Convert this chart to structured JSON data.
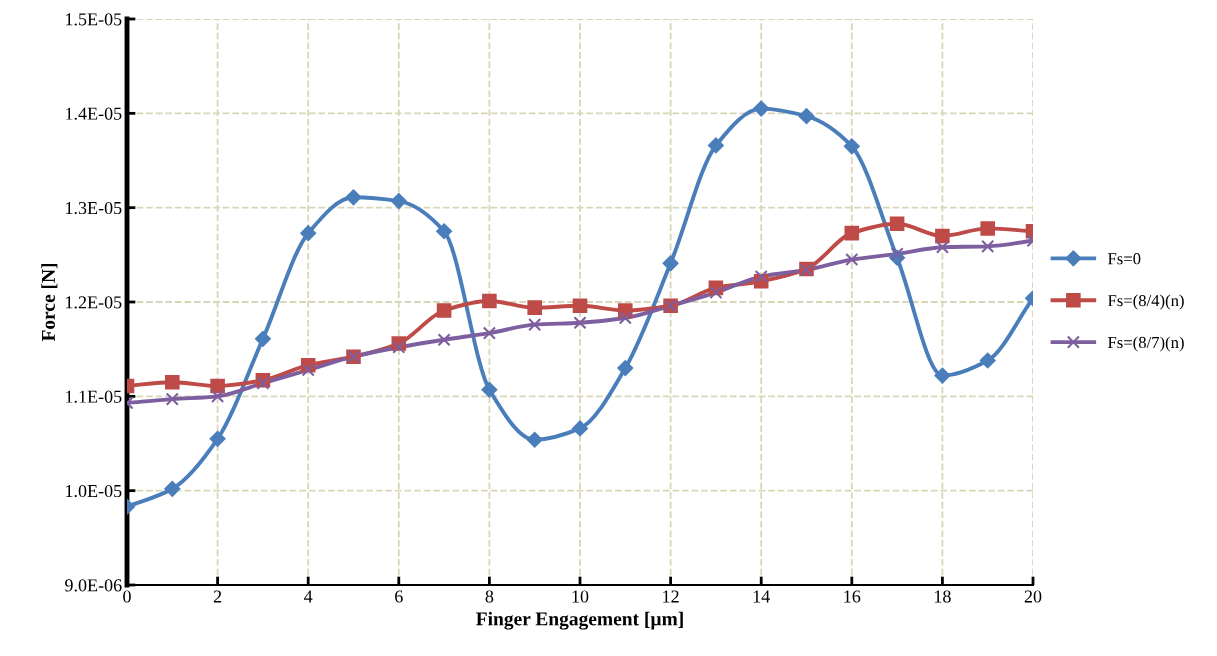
{
  "chart_data": {
    "type": "line",
    "xlabel": "Finger Engagement [µm]",
    "ylabel": "Force [N]",
    "x": [
      0,
      1,
      2,
      3,
      4,
      5,
      6,
      7,
      8,
      9,
      10,
      11,
      12,
      13,
      14,
      15,
      16,
      17,
      18,
      19,
      20
    ],
    "series": [
      {
        "name": "Fs=0",
        "color": "#4a7ebb",
        "marker": "diamond",
        "values": [
          9.83e-06,
          1.002e-05,
          1.055e-05,
          1.161e-05,
          1.273e-05,
          1.311e-05,
          1.307e-05,
          1.275e-05,
          1.107e-05,
          1.054e-05,
          1.066e-05,
          1.13e-05,
          1.241e-05,
          1.366e-05,
          1.405e-05,
          1.397e-05,
          1.365e-05,
          1.247e-05,
          1.122e-05,
          1.138e-05,
          1.204e-05
        ]
      },
      {
        "name": "Fs=(8/4)(n)",
        "color": "#be4b48",
        "marker": "square",
        "values": [
          1.111e-05,
          1.115e-05,
          1.111e-05,
          1.117e-05,
          1.133e-05,
          1.142e-05,
          1.156e-05,
          1.191e-05,
          1.201e-05,
          1.194e-05,
          1.196e-05,
          1.191e-05,
          1.196e-05,
          1.215e-05,
          1.222e-05,
          1.235e-05,
          1.273e-05,
          1.283e-05,
          1.27e-05,
          1.278e-05,
          1.275e-05
        ]
      },
      {
        "name": "Fs=(8/7)(n)",
        "color": "#7d5fa0",
        "marker": "cross",
        "values": [
          1.093e-05,
          1.097e-05,
          1.1e-05,
          1.114e-05,
          1.128e-05,
          1.142e-05,
          1.152e-05,
          1.16e-05,
          1.167e-05,
          1.176e-05,
          1.178e-05,
          1.183e-05,
          1.196e-05,
          1.21e-05,
          1.227e-05,
          1.234e-05,
          1.245e-05,
          1.251e-05,
          1.258e-05,
          1.259e-05,
          1.265e-05
        ]
      }
    ],
    "xlim": [
      0,
      20
    ],
    "xticks": [
      0,
      2,
      4,
      6,
      8,
      10,
      12,
      14,
      16,
      18,
      20
    ],
    "ylim": [
      9e-06,
      1.5e-05
    ],
    "yticks": [
      {
        "value": 9e-06,
        "label": "9.0E-06"
      },
      {
        "value": 1e-05,
        "label": "1.0E-05"
      },
      {
        "value": 1.1e-05,
        "label": "1.1E-05"
      },
      {
        "value": 1.2e-05,
        "label": "1.2E-05"
      },
      {
        "value": 1.3e-05,
        "label": "1.3E-05"
      },
      {
        "value": 1.4e-05,
        "label": "1.4E-05"
      },
      {
        "value": 1.5e-05,
        "label": "1.5E-05"
      }
    ],
    "grid": true,
    "legend": "right",
    "line_style": "solid"
  }
}
